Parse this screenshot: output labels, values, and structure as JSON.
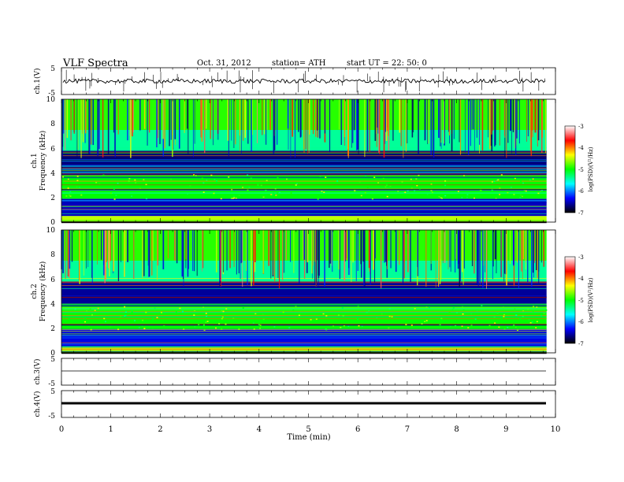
{
  "header": {
    "title": "VLF  Spectra",
    "date": "Oct. 31, 2012",
    "station": "station= ATH",
    "start": "start  UT  =    22: 50: 0"
  },
  "chart_data": [
    {
      "type": "line",
      "panel": "ch1-waveform",
      "ylabel": "ch.1(V)",
      "ylim": [
        -5,
        5
      ],
      "yticks": [
        "5",
        "-5"
      ],
      "trace_level": 0,
      "spikes_present": true,
      "color": "#000000"
    },
    {
      "type": "heatmap",
      "panel": "ch1-spectrogram",
      "ylabel_channel": "ch.1",
      "ylabel": "Frequency  (kHz)",
      "ylim": [
        0,
        10
      ],
      "yticks": [
        "0",
        "2",
        "4",
        "6",
        "8",
        "10"
      ],
      "bands": [
        {
          "from": 0,
          "to": 0.5,
          "level": -4.5
        },
        {
          "from": 0.5,
          "to": 1.9,
          "level": -6.5
        },
        {
          "from": 1.9,
          "to": 3.8,
          "level": -5.0
        },
        {
          "from": 3.8,
          "to": 5.8,
          "level": -6.7
        },
        {
          "from": 5.8,
          "to": 7.5,
          "level": -5.4
        },
        {
          "from": 7.5,
          "to": 10,
          "level": -4.9
        }
      ],
      "colorbar": {
        "label": "log(PSD)(V²/Hz)",
        "range": [
          -7,
          -3
        ],
        "ticks": [
          "-3",
          "-4",
          "-5",
          "-6",
          "-7"
        ],
        "colors": [
          "#ffffff",
          "#ff0000",
          "#ffff00",
          "#00ff00",
          "#00ffff",
          "#0000ff",
          "#000000"
        ]
      }
    },
    {
      "type": "heatmap",
      "panel": "ch2-spectrogram",
      "ylabel_channel": "ch.2",
      "ylabel": "Frequency  (kHz)",
      "ylim": [
        0,
        10
      ],
      "yticks": [
        "0",
        "2",
        "4",
        "6",
        "8",
        "10"
      ],
      "bands": [
        {
          "from": 0,
          "to": 0.5,
          "level": -4.5
        },
        {
          "from": 0.5,
          "to": 1.9,
          "level": -6.4
        },
        {
          "from": 1.9,
          "to": 4.0,
          "level": -5.0
        },
        {
          "from": 4.0,
          "to": 5.8,
          "level": -6.6
        },
        {
          "from": 5.8,
          "to": 7.5,
          "level": -5.4
        },
        {
          "from": 7.5,
          "to": 10,
          "level": -4.9
        }
      ],
      "colorbar": {
        "label": "log(PSD)(V²/Hz)",
        "range": [
          -7,
          -3
        ],
        "ticks": [
          "-3",
          "-4",
          "-5",
          "-6",
          "-7"
        ],
        "colors": [
          "#ffffff",
          "#ff0000",
          "#ffff00",
          "#00ff00",
          "#00ffff",
          "#0000ff",
          "#000000"
        ]
      }
    },
    {
      "type": "line",
      "panel": "ch3-waveform",
      "ylabel": "ch.3(V)",
      "ylim": [
        -5,
        5
      ],
      "yticks": [
        "5",
        "-5"
      ],
      "trace_level": 0,
      "color": "#000000"
    },
    {
      "type": "line",
      "panel": "ch4-waveform",
      "ylabel": "ch.4(V)",
      "ylim": [
        -5,
        5
      ],
      "yticks": [
        "5",
        "-5"
      ],
      "trace_level": 0,
      "color": "#000000"
    }
  ],
  "xaxis": {
    "label": "Time  (min)",
    "range": [
      0,
      10
    ],
    "ticks": [
      "0",
      "1",
      "2",
      "3",
      "4",
      "5",
      "6",
      "7",
      "8",
      "9",
      "10"
    ],
    "data_end": 9.82
  }
}
